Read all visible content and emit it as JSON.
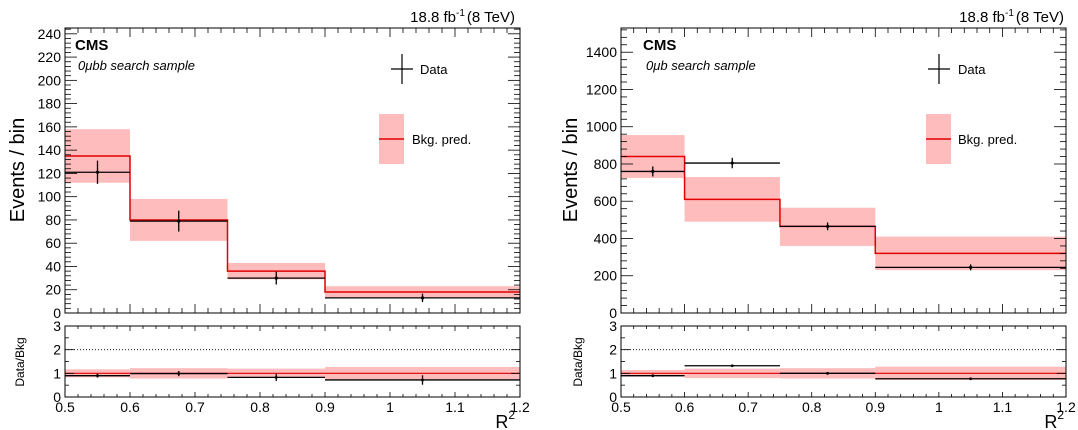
{
  "colors": {
    "data": "#000000",
    "background_line": "#e00000",
    "background_band": "#ffbcbc",
    "ratio_reference_line": "#000000"
  },
  "charts": [
    {
      "id": "left",
      "lumi_label": "18.8 fb",
      "lumi_exponent": "-1",
      "lumi_energy": "(8 TeV)",
      "experiment": "CMS",
      "sample_label": "0μbb search sample",
      "ylabel": "Events / bin",
      "xlabel": "R",
      "xlabel_exponent": "2",
      "ratio_ylabel": "Data/Bkg",
      "legend": {
        "data_label": "Data",
        "bkg_label": "Bkg. pred."
      },
      "xlim": [
        0.5,
        1.2
      ],
      "ylim": [
        0,
        245
      ],
      "ratio_ylim": [
        0,
        3
      ],
      "x_ticks": [
        "0.5",
        "0.6",
        "0.7",
        "0.8",
        "0.9",
        "1",
        "1.1",
        "1.2"
      ],
      "y_ticks": [
        "0",
        "20",
        "40",
        "60",
        "80",
        "100",
        "120",
        "140",
        "160",
        "180",
        "200",
        "220",
        "240"
      ],
      "ratio_y_ticks": [
        "0",
        "1",
        "2",
        "3"
      ],
      "chart_data": {
        "type": "bar",
        "bins": [
          [
            0.5,
            0.6
          ],
          [
            0.6,
            0.75
          ],
          [
            0.75,
            0.9
          ],
          [
            0.9,
            1.2
          ]
        ],
        "series": [
          {
            "name": "Data",
            "x": [
              0.55,
              0.675,
              0.825,
              1.05
            ],
            "values": [
              121,
              79,
              30,
              13
            ],
            "errors": [
              10,
              9,
              5.5,
              3.6
            ]
          },
          {
            "name": "Bkg. pred.",
            "values": [
              135,
              80,
              36,
              18
            ],
            "band_low": [
              112,
              62,
              29,
              13
            ],
            "band_high": [
              158,
              98,
              43,
              23
            ]
          }
        ],
        "ratio": {
          "values": [
            0.9,
            0.99,
            0.83,
            0.72
          ],
          "errors": [
            0.08,
            0.11,
            0.15,
            0.2
          ],
          "band_low": [
            0.83,
            0.78,
            0.8,
            0.73
          ],
          "band_high": [
            1.17,
            1.22,
            1.2,
            1.27
          ]
        }
      }
    },
    {
      "id": "right",
      "lumi_label": "18.8 fb",
      "lumi_exponent": "-1",
      "lumi_energy": "(8 TeV)",
      "experiment": "CMS",
      "sample_label": "0μb search sample",
      "ylabel": "Events / bin",
      "xlabel": "R",
      "xlabel_exponent": "2",
      "ratio_ylabel": "Data/Bkg",
      "legend": {
        "data_label": "Data",
        "bkg_label": "Bkg. pred."
      },
      "xlim": [
        0.5,
        1.2
      ],
      "ylim": [
        0,
        1530
      ],
      "ratio_ylim": [
        0,
        3
      ],
      "x_ticks": [
        "0.5",
        "0.6",
        "0.7",
        "0.8",
        "0.9",
        "1",
        "1.1",
        "1.2"
      ],
      "y_ticks": [
        "0",
        "200",
        "400",
        "600",
        "800",
        "1000",
        "1200",
        "1400"
      ],
      "ratio_y_ticks": [
        "0",
        "1",
        "2",
        "3"
      ],
      "chart_data": {
        "type": "bar",
        "bins": [
          [
            0.5,
            0.6
          ],
          [
            0.6,
            0.75
          ],
          [
            0.75,
            0.9
          ],
          [
            0.9,
            1.2
          ]
        ],
        "series": [
          {
            "name": "Data",
            "x": [
              0.55,
              0.675,
              0.825,
              1.05
            ],
            "values": [
              760,
              805,
              465,
              245
            ],
            "errors": [
              27,
              28,
              21,
              16
            ]
          },
          {
            "name": "Bkg. pred.",
            "values": [
              840,
              610,
              465,
              320
            ],
            "band_low": [
              725,
              490,
              360,
              230
            ],
            "band_high": [
              955,
              730,
              565,
              410
            ]
          }
        ],
        "ratio": {
          "values": [
            0.9,
            1.32,
            1.0,
            0.77
          ],
          "errors": [
            0.04,
            0.05,
            0.05,
            0.05
          ],
          "band_low": [
            0.86,
            0.8,
            0.78,
            0.72
          ],
          "band_high": [
            1.14,
            1.2,
            1.22,
            1.28
          ]
        }
      }
    }
  ]
}
